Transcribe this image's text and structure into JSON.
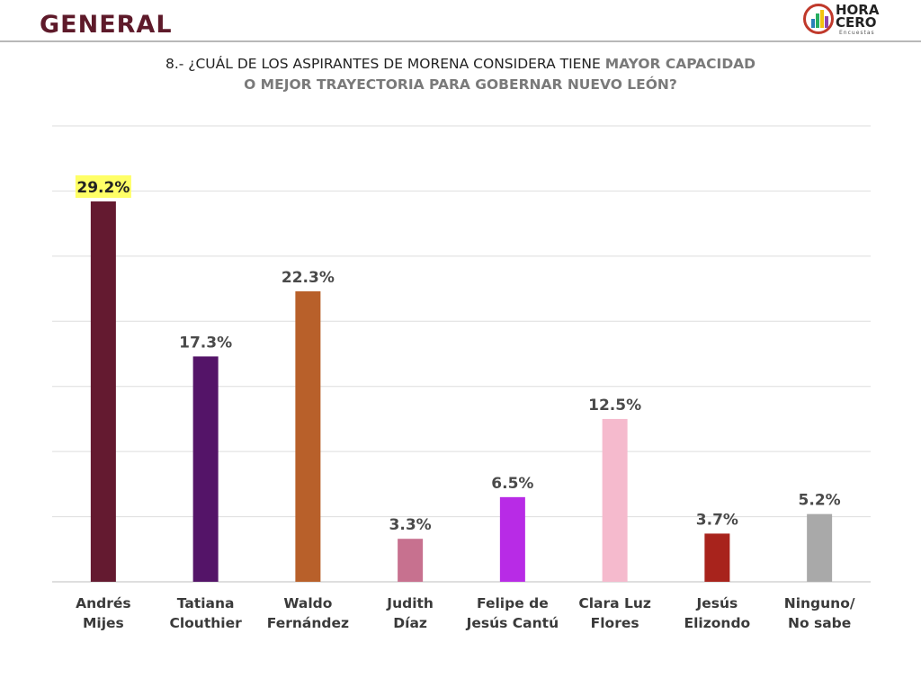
{
  "header": {
    "title": "GENERAL",
    "logo": {
      "line1": "HORA",
      "line2": "CERO",
      "sub": "Encuestas"
    }
  },
  "question": {
    "line1_normal": "8.- ¿CUÁL DE LOS ASPIRANTES DE MORENA CONSIDERA TIENE ",
    "line1_bold": "MAYOR CAPACIDAD",
    "line2_bold": "O MEJOR TRAYECTORIA PARA GOBERNAR NUEVO LEÓN?"
  },
  "chart_data": {
    "type": "bar",
    "categories": [
      [
        "Andrés",
        "Mijes"
      ],
      [
        "Tatiana",
        "Clouthier"
      ],
      [
        "Waldo",
        "Fernández"
      ],
      [
        "Judith",
        "Díaz"
      ],
      [
        "Felipe de",
        "Jesús Cantú"
      ],
      [
        "Clara Luz",
        "Flores"
      ],
      [
        "Jesús",
        "Elizondo"
      ],
      [
        "Ninguno/",
        "No sabe"
      ]
    ],
    "values": [
      29.2,
      17.3,
      22.3,
      3.3,
      6.5,
      12.5,
      3.7,
      5.2
    ],
    "value_labels": [
      "29.2%",
      "17.3%",
      "22.3%",
      "3.3%",
      "6.5%",
      "12.5%",
      "3.7%",
      "5.2%"
    ],
    "colors": [
      "#641a30",
      "#541468",
      "#b8602a",
      "#c7718f",
      "#b82be6",
      "#f5bacd",
      "#a8231c",
      "#a9a9a9"
    ],
    "highlight_index": 0,
    "highlight_color": "#ffff66",
    "ylim": [
      0,
      35
    ],
    "grid": true
  }
}
